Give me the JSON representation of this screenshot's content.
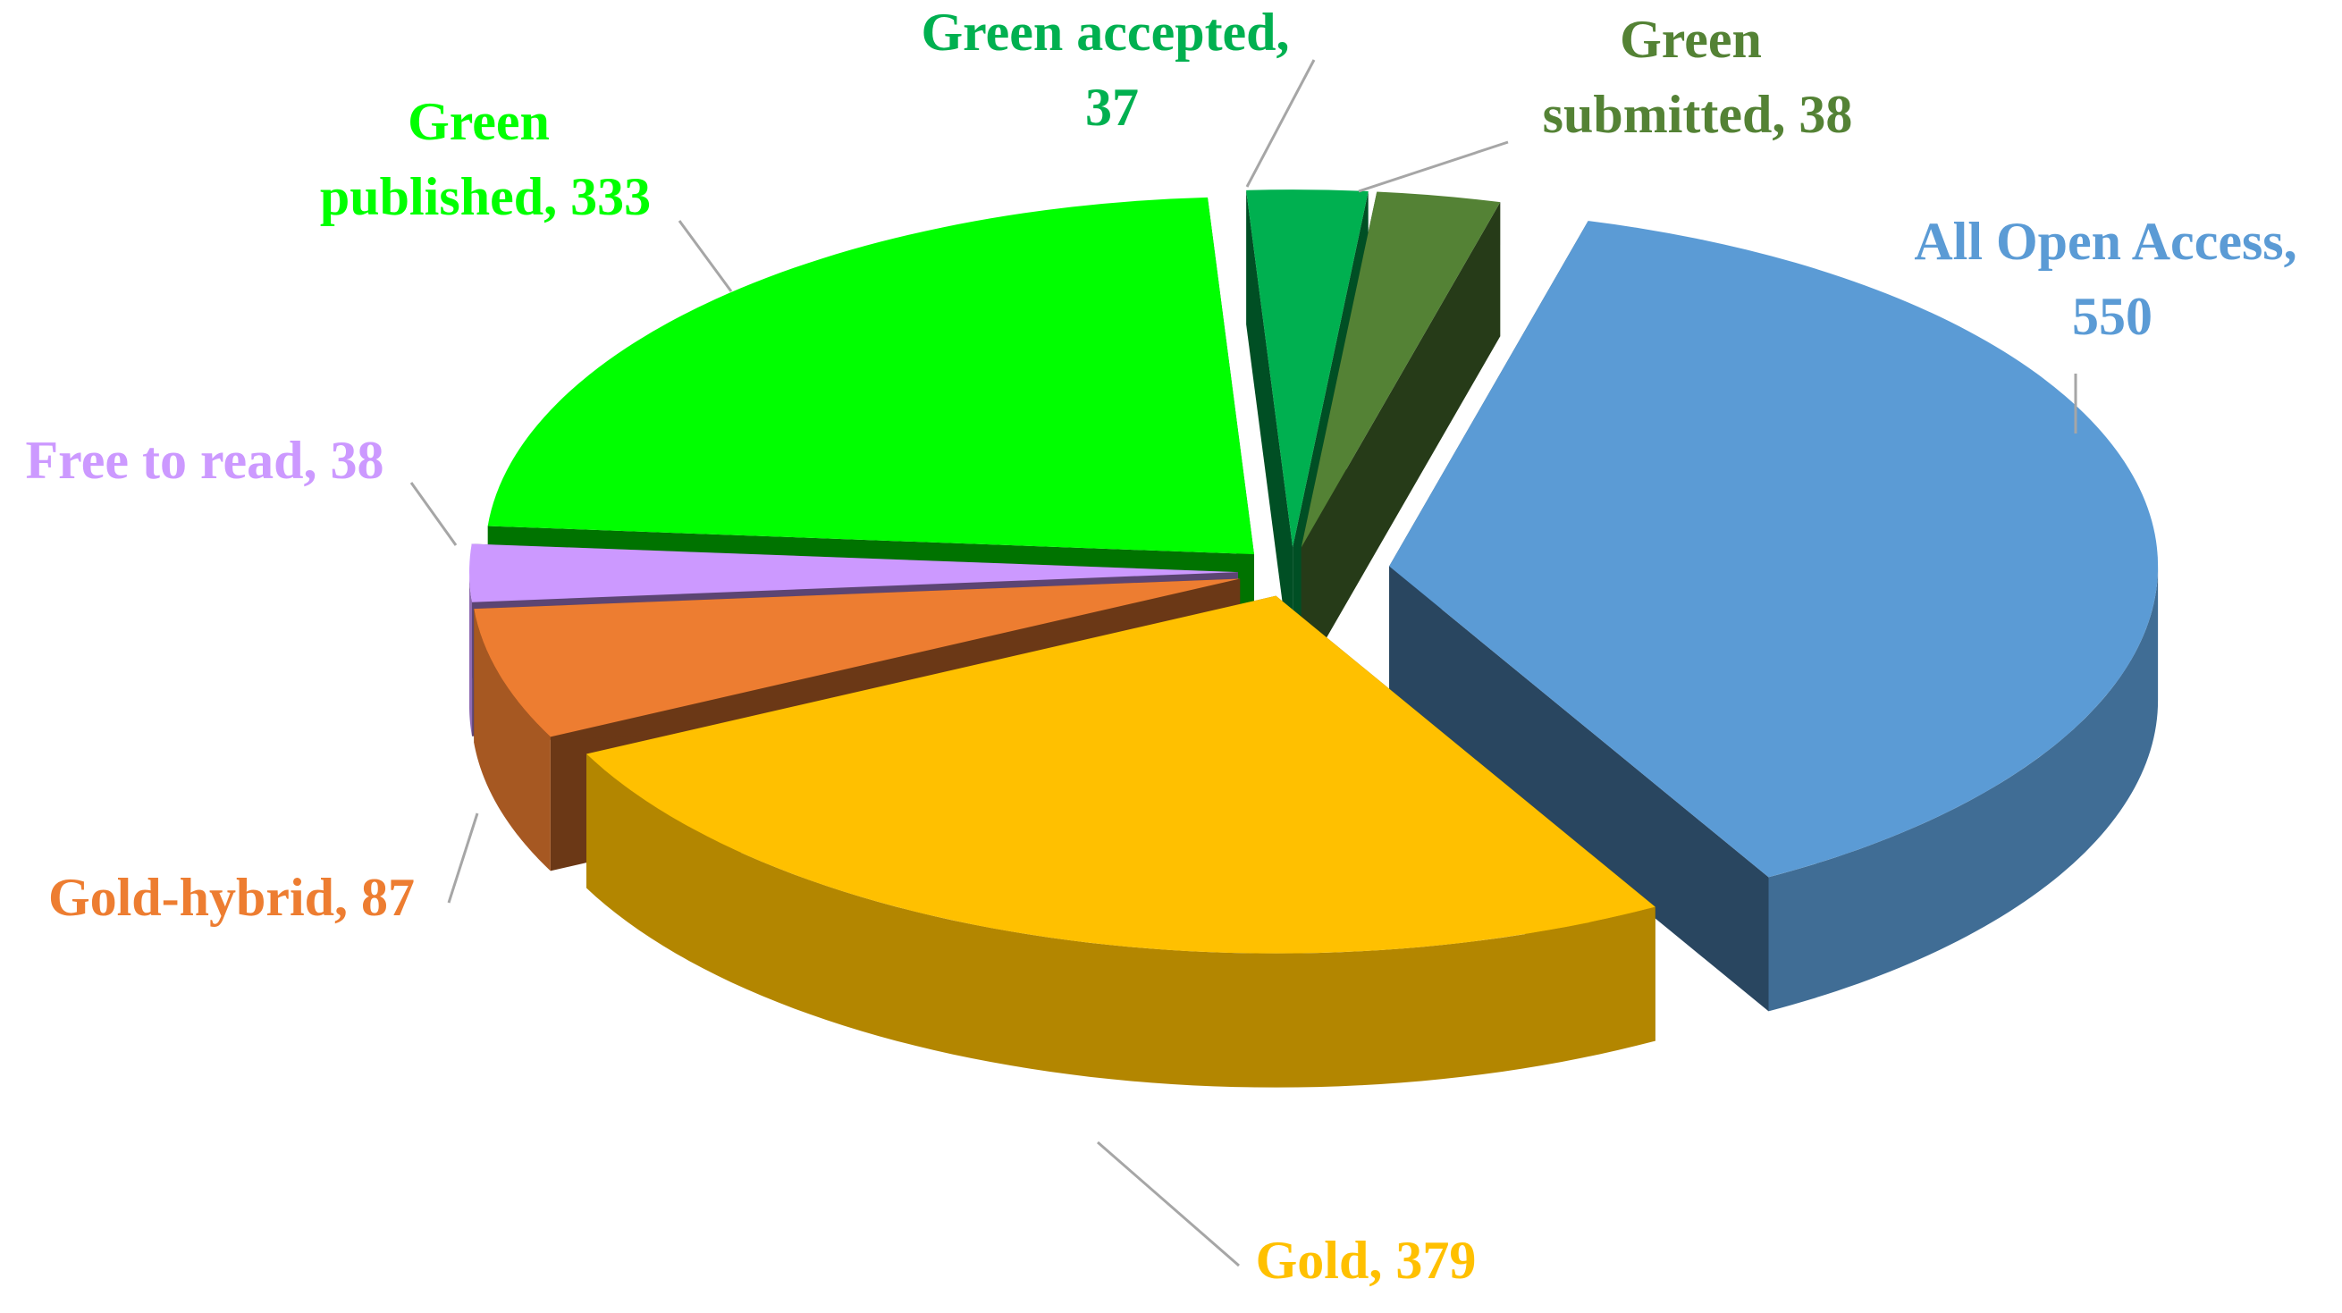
{
  "chart_data": {
    "type": "pie3d",
    "values": [
      550,
      379,
      87,
      38,
      333,
      37,
      38
    ],
    "value_labels": [
      "All Open Access, 550",
      "Gold, 379",
      "Gold-hybrid, 87",
      "Free to read, 38",
      "Green published, 333",
      "Green accepted, 37",
      "Green submitted, 38"
    ],
    "colors": [
      "#5b9bd5",
      "#ffc000",
      "#ed7d31",
      "#cc99ff",
      "#00ff00",
      "#00b050",
      "#548235"
    ]
  }
}
